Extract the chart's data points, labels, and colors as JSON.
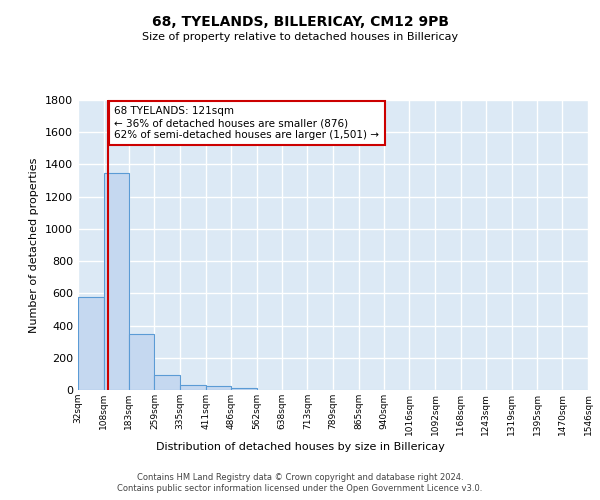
{
  "title": "68, TYELANDS, BILLERICAY, CM12 9PB",
  "subtitle": "Size of property relative to detached houses in Billericay",
  "xlabel": "Distribution of detached houses by size in Billericay",
  "ylabel": "Number of detached properties",
  "bin_edges": [
    32,
    108,
    183,
    259,
    335,
    411,
    486,
    562,
    638,
    713,
    789,
    865,
    940,
    1016,
    1092,
    1168,
    1243,
    1319,
    1395,
    1470,
    1546
  ],
  "bar_heights": [
    575,
    1350,
    350,
    95,
    30,
    25,
    15,
    0,
    0,
    0,
    0,
    0,
    0,
    0,
    0,
    0,
    0,
    0,
    0,
    0
  ],
  "bar_color": "#c5d8f0",
  "bar_edgecolor": "#5b9bd5",
  "property_size": 121,
  "vline_color": "#cc0000",
  "annotation_line1": "68 TYELANDS: 121sqm",
  "annotation_line2": "← 36% of detached houses are smaller (876)",
  "annotation_line3": "62% of semi-detached houses are larger (1,501) →",
  "annotation_box_edgecolor": "#cc0000",
  "annotation_box_facecolor": "#ffffff",
  "ylim": [
    0,
    1800
  ],
  "background_color": "#dce9f5",
  "grid_color": "#ffffff",
  "footer_line1": "Contains HM Land Registry data © Crown copyright and database right 2024.",
  "footer_line2": "Contains public sector information licensed under the Open Government Licence v3.0.",
  "tick_labels": [
    "32sqm",
    "108sqm",
    "183sqm",
    "259sqm",
    "335sqm",
    "411sqm",
    "486sqm",
    "562sqm",
    "638sqm",
    "713sqm",
    "789sqm",
    "865sqm",
    "940sqm",
    "1016sqm",
    "1092sqm",
    "1168sqm",
    "1243sqm",
    "1319sqm",
    "1395sqm",
    "1470sqm",
    "1546sqm"
  ]
}
